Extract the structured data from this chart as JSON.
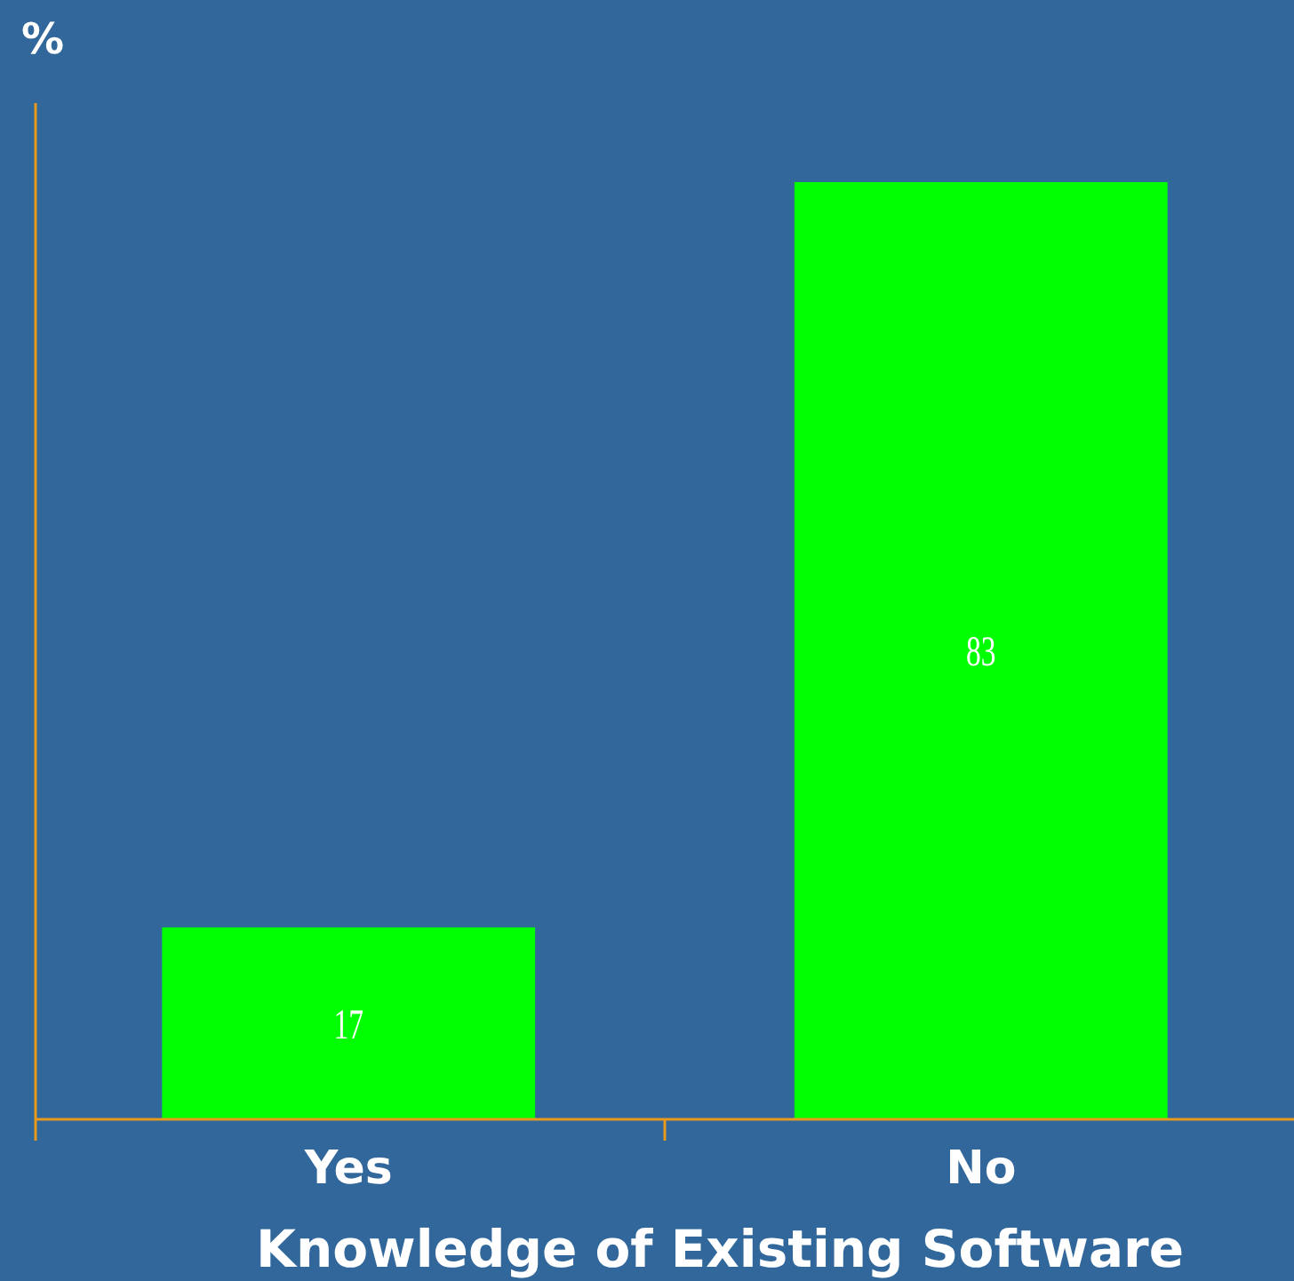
{
  "chart_data": {
    "type": "bar",
    "xlabel": "Knowledge of Existing Software",
    "ylabel": "%",
    "categories": [
      "Yes",
      "No"
    ],
    "values": [
      17,
      83
    ],
    "color": "#00ff00",
    "ylim": [
      0,
      90
    ],
    "data_labels": true,
    "tick_labels": "x"
  }
}
